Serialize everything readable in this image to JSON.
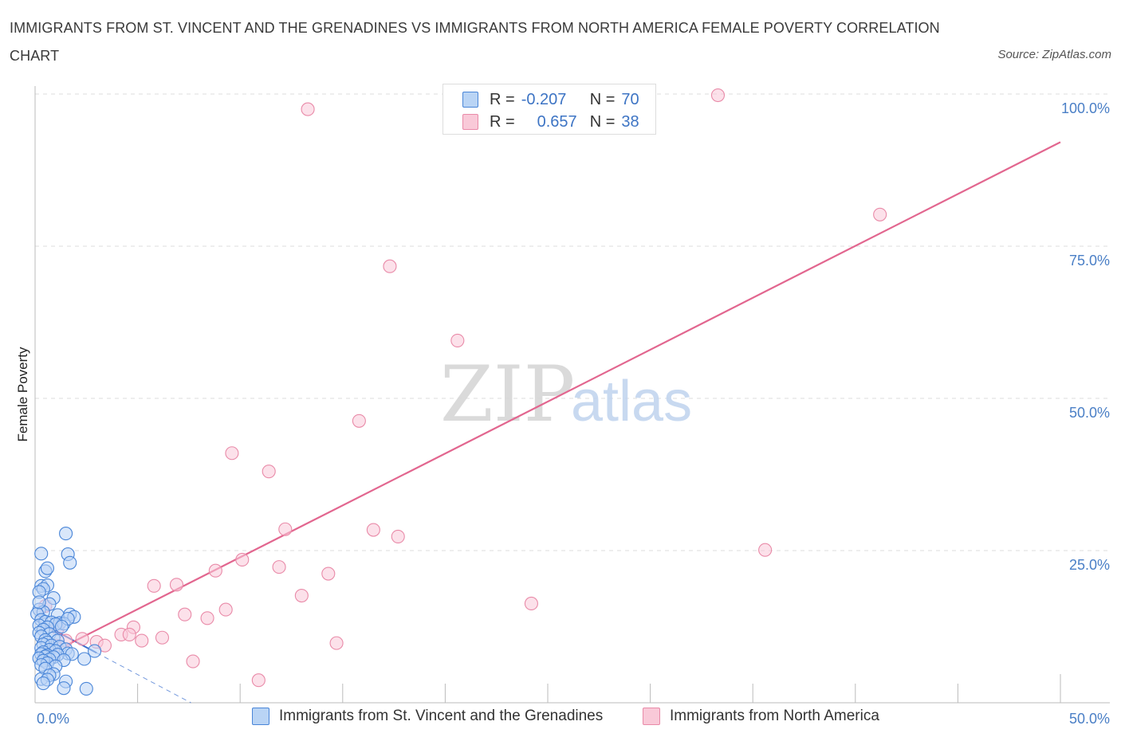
{
  "header": {
    "title": "IMMIGRANTS FROM ST. VINCENT AND THE GRENADINES VS IMMIGRANTS FROM NORTH AMERICA FEMALE POVERTY CORRELATION CHART",
    "source": "Source: ZipAtlas.com"
  },
  "watermark": {
    "zip": "ZIP",
    "atlas": "atlas"
  },
  "colors": {
    "blue_fill": "#b9d4f5",
    "blue_stroke": "#4a86d8",
    "blue_line": "#3a6fcf",
    "pink_fill": "#f9c9d8",
    "pink_stroke": "#e98aa8",
    "pink_line": "#e2668f",
    "tick_text": "#4a7fc6",
    "grid": "#dcdcdc"
  },
  "stats": [
    {
      "r_label": "R =",
      "r_value": "-0.207",
      "n_label": "N =",
      "n_value": "70"
    },
    {
      "r_label": "R =",
      "r_value": "0.657",
      "n_label": "N =",
      "n_value": "38"
    }
  ],
  "chart_data": {
    "type": "scatter",
    "title": "IMMIGRANTS FROM ST. VINCENT AND THE GRENADINES VS IMMIGRANTS FROM NORTH AMERICA FEMALE POVERTY CORRELATION CHART",
    "xlabel": "",
    "ylabel": "Female Poverty",
    "xlim": [
      0,
      50
    ],
    "ylim": [
      0,
      100
    ],
    "x_tick_labels": [
      "0.0%",
      "50.0%"
    ],
    "y_tick_labels": [
      "25.0%",
      "50.0%",
      "75.0%",
      "100.0%"
    ],
    "y_ticks": [
      25,
      50,
      75,
      100
    ],
    "grid": true,
    "legend_position": "bottom",
    "series": [
      {
        "name": "Immigrants from St. Vincent and the Grenadines",
        "color": "#4a86d8",
        "points": [
          [
            0.3,
            24.5
          ],
          [
            1.5,
            27.8
          ],
          [
            1.6,
            24.4
          ],
          [
            1.7,
            23.0
          ],
          [
            0.5,
            21.6
          ],
          [
            0.6,
            22.1
          ],
          [
            0.3,
            19.2
          ],
          [
            0.6,
            19.3
          ],
          [
            0.4,
            18.7
          ],
          [
            0.2,
            18.2
          ],
          [
            0.9,
            17.2
          ],
          [
            0.7,
            16.2
          ],
          [
            0.2,
            15.3
          ],
          [
            0.4,
            14.9
          ],
          [
            0.1,
            14.6
          ],
          [
            1.1,
            14.4
          ],
          [
            1.7,
            14.5
          ],
          [
            1.9,
            14.1
          ],
          [
            0.3,
            13.6
          ],
          [
            0.5,
            13.3
          ],
          [
            0.8,
            13.2
          ],
          [
            1.2,
            13.1
          ],
          [
            1.4,
            13.0
          ],
          [
            1.6,
            13.8
          ],
          [
            1.0,
            12.9
          ],
          [
            0.2,
            12.7
          ],
          [
            0.6,
            12.4
          ],
          [
            0.4,
            12.0
          ],
          [
            1.3,
            12.5
          ],
          [
            0.2,
            11.5
          ],
          [
            0.7,
            11.3
          ],
          [
            0.3,
            10.9
          ],
          [
            0.9,
            10.6
          ],
          [
            0.5,
            10.3
          ],
          [
            1.1,
            10.2
          ],
          [
            0.6,
            9.9
          ],
          [
            0.4,
            9.6
          ],
          [
            0.8,
            9.4
          ],
          [
            1.2,
            9.2
          ],
          [
            0.3,
            9.0
          ],
          [
            1.5,
            8.8
          ],
          [
            0.7,
            8.7
          ],
          [
            1.0,
            8.5
          ],
          [
            0.4,
            8.3
          ],
          [
            1.6,
            8.1
          ],
          [
            2.9,
            8.5
          ],
          [
            0.3,
            8.0
          ],
          [
            1.8,
            8.0
          ],
          [
            0.6,
            7.8
          ],
          [
            1.1,
            7.9
          ],
          [
            0.5,
            7.6
          ],
          [
            0.9,
            7.5
          ],
          [
            0.2,
            7.3
          ],
          [
            0.7,
            7.1
          ],
          [
            1.4,
            7.0
          ],
          [
            0.4,
            6.9
          ],
          [
            2.4,
            7.2
          ],
          [
            0.6,
            6.5
          ],
          [
            0.3,
            6.2
          ],
          [
            1.0,
            6.0
          ],
          [
            0.5,
            5.6
          ],
          [
            0.9,
            4.7
          ],
          [
            0.7,
            4.5
          ],
          [
            0.3,
            3.9
          ],
          [
            0.6,
            3.8
          ],
          [
            1.5,
            3.5
          ],
          [
            0.4,
            3.2
          ],
          [
            1.4,
            2.4
          ],
          [
            2.5,
            2.3
          ],
          [
            0.2,
            16.5
          ]
        ]
      },
      {
        "name": "Immigrants from North America",
        "color": "#e98aa8",
        "points": [
          [
            13.3,
            97.5
          ],
          [
            33.3,
            99.8
          ],
          [
            41.2,
            80.2
          ],
          [
            17.3,
            71.7
          ],
          [
            20.6,
            59.5
          ],
          [
            15.8,
            46.3
          ],
          [
            9.6,
            41.0
          ],
          [
            11.4,
            38.0
          ],
          [
            12.2,
            28.5
          ],
          [
            16.5,
            28.4
          ],
          [
            17.7,
            27.3
          ],
          [
            35.6,
            25.1
          ],
          [
            10.1,
            23.5
          ],
          [
            8.8,
            21.7
          ],
          [
            11.9,
            22.3
          ],
          [
            14.3,
            21.2
          ],
          [
            5.8,
            19.2
          ],
          [
            6.9,
            19.4
          ],
          [
            13.0,
            17.6
          ],
          [
            24.2,
            16.3
          ],
          [
            9.3,
            15.3
          ],
          [
            7.3,
            14.5
          ],
          [
            8.4,
            13.9
          ],
          [
            4.8,
            12.4
          ],
          [
            4.2,
            11.2
          ],
          [
            4.6,
            11.2
          ],
          [
            6.2,
            10.7
          ],
          [
            2.3,
            10.5
          ],
          [
            1.5,
            10.2
          ],
          [
            3.0,
            10.0
          ],
          [
            5.2,
            10.2
          ],
          [
            1.0,
            9.4
          ],
          [
            3.4,
            9.4
          ],
          [
            14.7,
            9.8
          ],
          [
            7.7,
            6.8
          ],
          [
            10.9,
            3.7
          ],
          [
            0.5,
            15.9
          ],
          [
            1.1,
            12.2
          ]
        ]
      }
    ],
    "trend_lines": [
      {
        "series": "Immigrants from St. Vincent and the Grenadines",
        "from": [
          0,
          13.6
        ],
        "to": [
          3.0,
          8.2
        ],
        "dashed_to": [
          7.6,
          0
        ]
      },
      {
        "series": "Immigrants from North America",
        "from": [
          1.5,
          9.4
        ],
        "to": [
          50,
          92.1
        ]
      }
    ]
  }
}
